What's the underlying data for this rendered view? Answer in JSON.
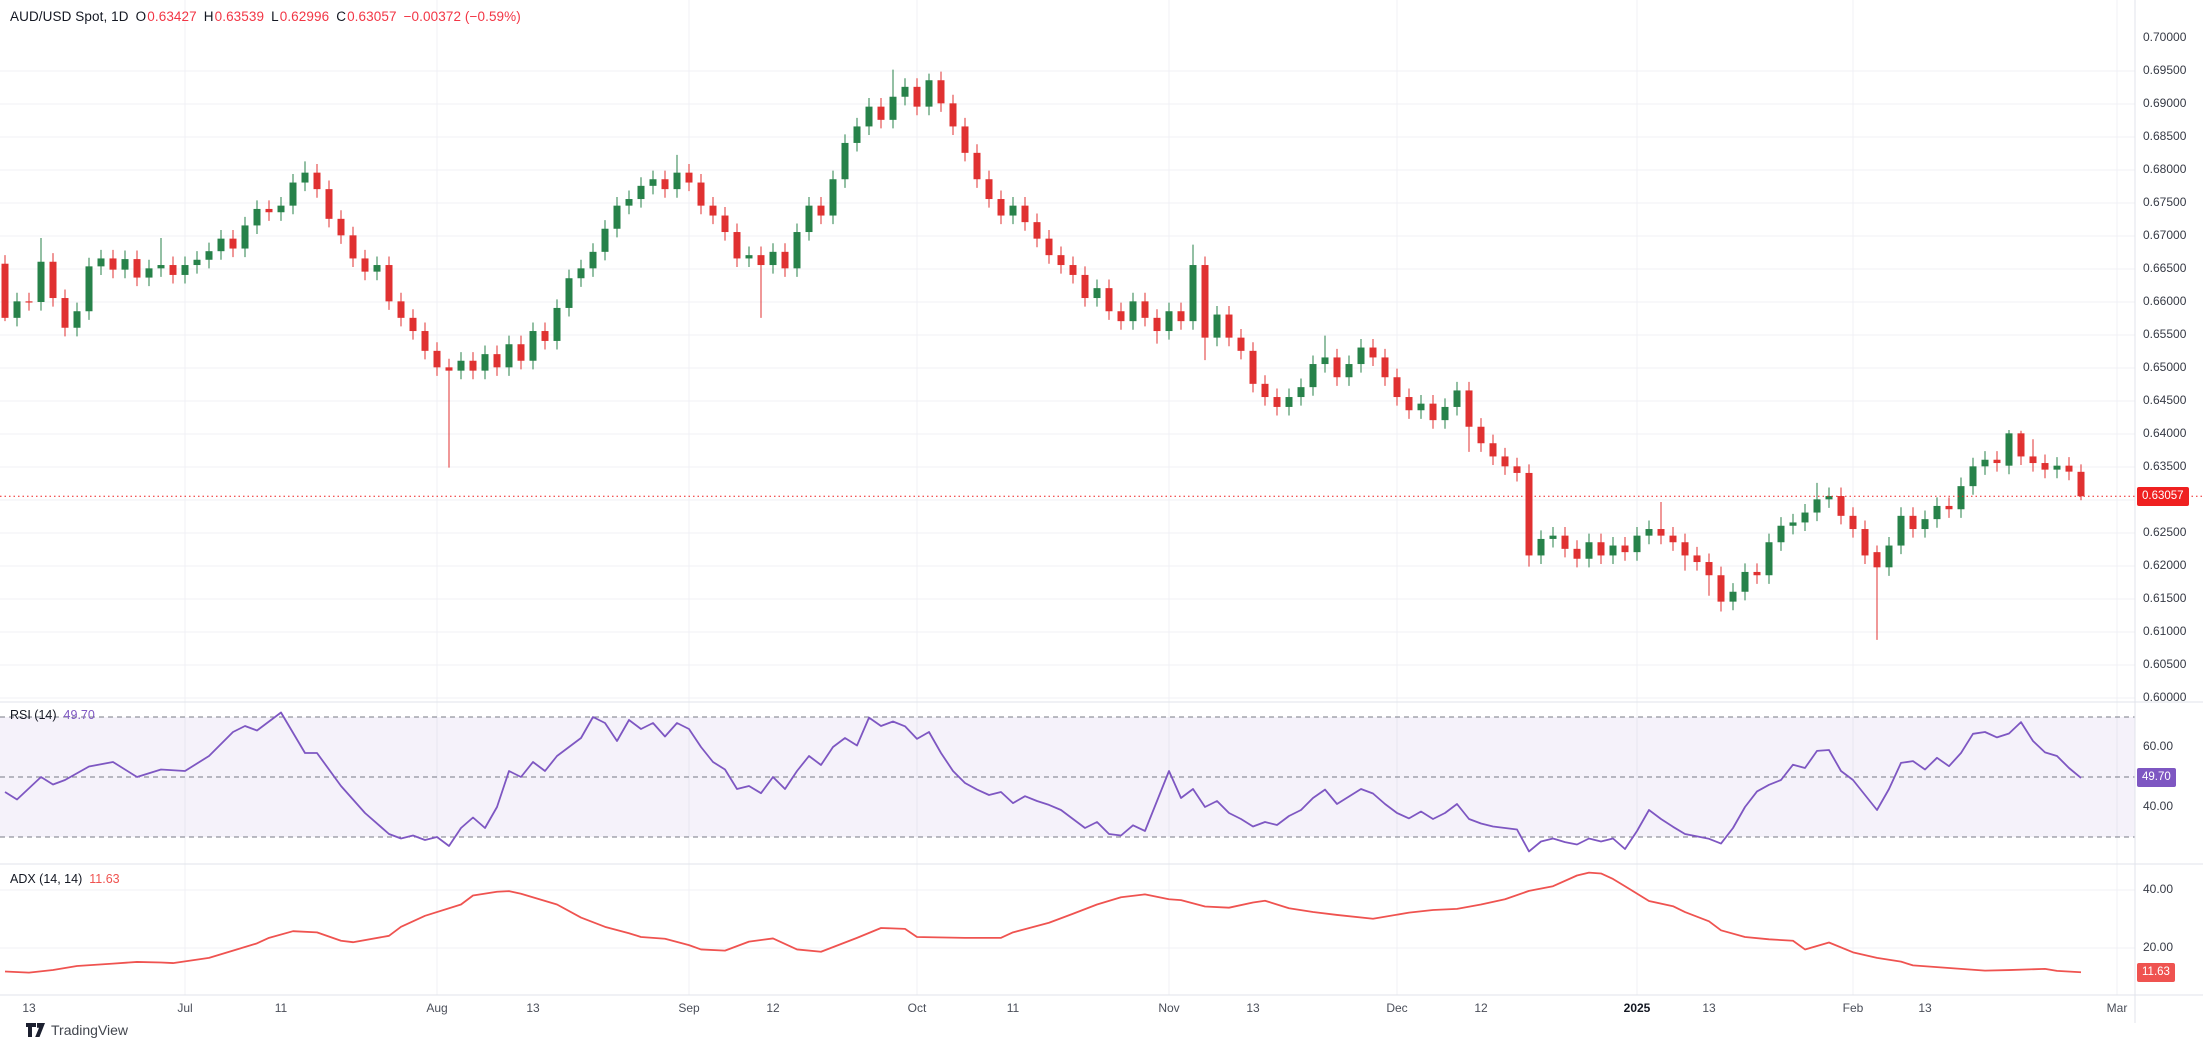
{
  "header": {
    "symbol": "AUD/USD Spot, 1D",
    "fields": [
      {
        "k": "O",
        "v": "0.63427"
      },
      {
        "k": "H",
        "v": "0.63539"
      },
      {
        "k": "L",
        "v": "0.62996"
      },
      {
        "k": "C",
        "v": "0.63057"
      }
    ],
    "change": "−0.00372 (−0.59%)"
  },
  "colors": {
    "up": "#27824a",
    "down": "#e03131",
    "last_price_line": "#ef2020",
    "price_badge_bg": "#ef2020",
    "rsi_line": "#7e57c2",
    "rsi_band_fill": "#7e57c2",
    "rsi_badge_bg": "#7e57c2",
    "adx_line": "#ef5350",
    "adx_badge_bg": "#ef5350",
    "grid": "#f0f1f5",
    "separator": "#e0e3eb",
    "dashed_level": "#787b86",
    "axis_text": "#363a45"
  },
  "price_axis": {
    "ticks": [
      {
        "label": "0.70000",
        "price": 0.7
      },
      {
        "label": "0.69500",
        "price": 0.695
      },
      {
        "label": "0.69000",
        "price": 0.69
      },
      {
        "label": "0.68500",
        "price": 0.685
      },
      {
        "label": "0.68000",
        "price": 0.68
      },
      {
        "label": "0.67500",
        "price": 0.675
      },
      {
        "label": "0.67000",
        "price": 0.67
      },
      {
        "label": "0.66500",
        "price": 0.665
      },
      {
        "label": "0.66000",
        "price": 0.66
      },
      {
        "label": "0.65500",
        "price": 0.655
      },
      {
        "label": "0.65000",
        "price": 0.65
      },
      {
        "label": "0.64500",
        "price": 0.645
      },
      {
        "label": "0.64000",
        "price": 0.64
      },
      {
        "label": "0.63500",
        "price": 0.635
      },
      {
        "label": "0.62500",
        "price": 0.625
      },
      {
        "label": "0.62000",
        "price": 0.62
      },
      {
        "label": "0.61500",
        "price": 0.615
      },
      {
        "label": "0.61000",
        "price": 0.61
      },
      {
        "label": "0.60500",
        "price": 0.605
      },
      {
        "label": "0.60000",
        "price": 0.6
      }
    ],
    "last_price_label": "0.63057",
    "last_price": 0.63057
  },
  "rsi_panel": {
    "name_label": "RSI (14)",
    "value_label": "49.70",
    "value": 49.7,
    "axis_ticks": [
      {
        "label": "60.00",
        "value": 60
      },
      {
        "label": "40.00",
        "value": 40
      }
    ],
    "levels": {
      "upper": 70,
      "middle": 50,
      "lower": 30
    }
  },
  "adx_panel": {
    "name_label": "ADX (14, 14)",
    "value_label": "11.63",
    "value": 11.63,
    "axis_ticks": [
      {
        "label": "40.00",
        "value": 40
      },
      {
        "label": "20.00",
        "value": 20
      }
    ]
  },
  "time_axis": {
    "ticks": [
      {
        "i": 2,
        "label": "13"
      },
      {
        "i": 15,
        "label": "Jul",
        "grid": true
      },
      {
        "i": 23,
        "label": "11"
      },
      {
        "i": 36,
        "label": "Aug",
        "grid": true
      },
      {
        "i": 44,
        "label": "13"
      },
      {
        "i": 57,
        "label": "Sep",
        "grid": true
      },
      {
        "i": 64,
        "label": "12"
      },
      {
        "i": 76,
        "label": "Oct",
        "grid": true
      },
      {
        "i": 84,
        "label": "11"
      },
      {
        "i": 97,
        "label": "Nov",
        "grid": true
      },
      {
        "i": 104,
        "label": "13"
      },
      {
        "i": 116,
        "label": "Dec",
        "grid": true
      },
      {
        "i": 123,
        "label": "12"
      },
      {
        "i": 136,
        "label": "2025",
        "grid": true,
        "bold": true
      },
      {
        "i": 142,
        "label": "13"
      },
      {
        "i": 154,
        "label": "Feb",
        "grid": true
      },
      {
        "i": 160,
        "label": "13"
      },
      {
        "i": 176,
        "label": "Mar",
        "grid": true
      }
    ]
  },
  "watermark": {
    "logo_text": "TradingView"
  },
  "chart_data": {
    "type": "candlestick",
    "title": "AUD/USD Spot, 1D",
    "symbol": "AUD/USD",
    "timeframe": "1D",
    "x_range": "mid-June 2024 to late February 2025, daily bars",
    "ylim": [
      0.6,
      0.7
    ],
    "grid": true,
    "last_bar_ohlc": {
      "o": 0.63427,
      "h": 0.63539,
      "l": 0.62996,
      "c": 0.63057
    },
    "change": -0.00372,
    "change_pct": -0.59,
    "ohlc_derivation": "open = previous close, high = max(o,c)+0.0013, low = min(o,c)-0.0013 unless overridden below; values estimated from gridlines",
    "first_open": 0.6658,
    "default_wick": 0.0013,
    "closes": [
      0.6576,
      0.6601,
      0.66,
      0.6661,
      0.6606,
      0.6561,
      0.6586,
      0.6654,
      0.6666,
      0.6649,
      0.6665,
      0.6637,
      0.6651,
      0.6656,
      0.6641,
      0.6656,
      0.6664,
      0.6677,
      0.6696,
      0.6681,
      0.6716,
      0.6741,
      0.6736,
      0.6746,
      0.6781,
      0.6796,
      0.6771,
      0.6726,
      0.6701,
      0.6666,
      0.6646,
      0.6656,
      0.6601,
      0.6576,
      0.6556,
      0.6526,
      0.6501,
      0.6496,
      0.6511,
      0.6496,
      0.6521,
      0.6501,
      0.6536,
      0.6511,
      0.6556,
      0.6541,
      0.6591,
      0.6636,
      0.6651,
      0.6676,
      0.6711,
      0.6746,
      0.6756,
      0.6776,
      0.6786,
      0.6771,
      0.6796,
      0.6781,
      0.6746,
      0.6731,
      0.6706,
      0.6666,
      0.6671,
      0.6656,
      0.6676,
      0.6651,
      0.6706,
      0.6746,
      0.6731,
      0.6786,
      0.6841,
      0.6866,
      0.6896,
      0.6876,
      0.6911,
      0.6926,
      0.6896,
      0.6936,
      0.6901,
      0.6866,
      0.6826,
      0.6786,
      0.6756,
      0.6731,
      0.6746,
      0.6721,
      0.6696,
      0.6671,
      0.6656,
      0.6641,
      0.6606,
      0.6621,
      0.6586,
      0.6571,
      0.6601,
      0.6576,
      0.6556,
      0.6586,
      0.6571,
      0.6656,
      0.6546,
      0.6581,
      0.6546,
      0.6526,
      0.6476,
      0.6456,
      0.6441,
      0.6456,
      0.6471,
      0.6506,
      0.6516,
      0.6486,
      0.6506,
      0.6531,
      0.6516,
      0.6486,
      0.6456,
      0.6436,
      0.6446,
      0.6421,
      0.6441,
      0.6466,
      0.6411,
      0.6386,
      0.6366,
      0.6351,
      0.6341,
      0.6216,
      0.6241,
      0.6246,
      0.6226,
      0.6211,
      0.6236,
      0.6216,
      0.6231,
      0.6221,
      0.6246,
      0.6256,
      0.6246,
      0.6236,
      0.6216,
      0.6206,
      0.6186,
      0.6146,
      0.6161,
      0.6191,
      0.6186,
      0.6236,
      0.6261,
      0.6266,
      0.6281,
      0.6301,
      0.6306,
      0.6276,
      0.6256,
      0.6216,
      0.6198,
      0.6231,
      0.6276,
      0.6256,
      0.6271,
      0.6291,
      0.6286,
      0.6321,
      0.6351,
      0.6361,
      0.6356,
      0.6401,
      0.6366,
      0.6356,
      0.6346,
      0.6352,
      0.6343,
      0.63057
    ],
    "overrides": {
      "0": {
        "o": 0.6658,
        "h": 0.6671,
        "l": 0.6571
      },
      "3": {
        "h": 0.6697
      },
      "13": {
        "h": 0.6697
      },
      "25": {
        "h": 0.6813
      },
      "37": {
        "l": 0.6349
      },
      "56": {
        "h": 0.6823
      },
      "63": {
        "l": 0.6576
      },
      "74": {
        "h": 0.6952
      },
      "77": {
        "h": 0.6946
      },
      "96": {
        "l": 0.6537
      },
      "99": {
        "h": 0.6687
      },
      "100": {
        "l": 0.6512
      },
      "110": {
        "h": 0.6549
      },
      "122": {
        "l": 0.6373
      },
      "127": {
        "l": 0.6199
      },
      "138": {
        "h": 0.6297
      },
      "140": {
        "l": 0.6193
      },
      "142": {
        "l": 0.6155
      },
      "143": {
        "l": 0.6131
      },
      "151": {
        "h": 0.6326
      },
      "156": {
        "o": 0.6221,
        "h": 0.6231,
        "l": 0.6088
      },
      "167": {
        "o": 0.6352,
        "h": 0.6406
      },
      "168": {
        "h": 0.6405
      },
      "169": {
        "h": 0.6392
      },
      "173": {
        "o": 0.63427,
        "h": 0.63539,
        "l": 0.62996
      }
    },
    "rsi_points": [
      [
        0,
        45
      ],
      [
        1,
        42.5
      ],
      [
        3,
        50
      ],
      [
        4,
        47.5
      ],
      [
        5,
        49
      ],
      [
        7,
        53.5
      ],
      [
        9,
        55
      ],
      [
        11,
        50
      ],
      [
        13,
        52.5
      ],
      [
        15,
        52
      ],
      [
        17,
        57
      ],
      [
        19,
        65
      ],
      [
        20,
        67
      ],
      [
        21,
        65.5
      ],
      [
        23,
        71.5
      ],
      [
        25,
        58
      ],
      [
        26,
        58
      ],
      [
        28,
        47
      ],
      [
        30,
        38
      ],
      [
        32,
        31
      ],
      [
        33,
        29.5
      ],
      [
        34,
        30.5
      ],
      [
        35,
        29
      ],
      [
        36,
        30
      ],
      [
        37,
        27
      ],
      [
        38,
        33
      ],
      [
        39,
        36.5
      ],
      [
        40,
        33
      ],
      [
        41,
        40
      ],
      [
        42,
        52
      ],
      [
        43,
        50
      ],
      [
        44,
        55
      ],
      [
        45,
        52
      ],
      [
        46,
        57
      ],
      [
        48,
        63
      ],
      [
        49,
        70
      ],
      [
        50,
        68
      ],
      [
        51,
        62
      ],
      [
        52,
        69
      ],
      [
        53,
        66
      ],
      [
        54,
        68
      ],
      [
        55,
        63.5
      ],
      [
        56,
        68
      ],
      [
        57,
        66
      ],
      [
        58,
        60
      ],
      [
        59,
        55
      ],
      [
        60,
        52.5
      ],
      [
        61,
        46
      ],
      [
        62,
        47
      ],
      [
        63,
        44.6
      ],
      [
        64,
        50
      ],
      [
        65,
        46
      ],
      [
        66,
        52
      ],
      [
        67,
        57
      ],
      [
        68,
        54
      ],
      [
        69,
        60
      ],
      [
        70,
        63
      ],
      [
        71,
        60.5
      ],
      [
        72,
        69.8
      ],
      [
        73,
        67
      ],
      [
        74,
        68.5
      ],
      [
        75,
        66.9
      ],
      [
        76,
        62.7
      ],
      [
        77,
        65
      ],
      [
        78,
        58
      ],
      [
        79,
        52
      ],
      [
        80,
        48
      ],
      [
        81,
        45.8
      ],
      [
        82,
        44
      ],
      [
        83,
        45
      ],
      [
        84,
        41.3
      ],
      [
        85,
        43.6
      ],
      [
        86,
        42
      ],
      [
        87,
        40.7
      ],
      [
        88,
        39
      ],
      [
        89,
        36
      ],
      [
        90,
        33
      ],
      [
        91,
        35
      ],
      [
        92,
        31
      ],
      [
        93,
        30.5
      ],
      [
        94,
        33.9
      ],
      [
        95,
        32
      ],
      [
        97,
        52
      ],
      [
        98,
        43
      ],
      [
        99,
        46
      ],
      [
        100,
        40
      ],
      [
        101,
        42
      ],
      [
        102,
        38
      ],
      [
        103,
        36
      ],
      [
        104,
        33.5
      ],
      [
        105,
        35
      ],
      [
        106,
        34
      ],
      [
        107,
        37
      ],
      [
        108,
        39
      ],
      [
        109,
        43
      ],
      [
        110,
        45.8
      ],
      [
        111,
        41
      ],
      [
        112,
        43.5
      ],
      [
        113,
        46
      ],
      [
        114,
        44.5
      ],
      [
        115,
        41
      ],
      [
        116,
        38
      ],
      [
        117,
        36.2
      ],
      [
        118,
        38.5
      ],
      [
        119,
        36
      ],
      [
        120,
        38
      ],
      [
        121,
        41
      ],
      [
        122,
        36
      ],
      [
        123,
        34.5
      ],
      [
        124,
        33.5
      ],
      [
        125,
        33
      ],
      [
        126,
        32.5
      ],
      [
        127,
        25.2
      ],
      [
        128,
        28.5
      ],
      [
        129,
        29.5
      ],
      [
        130,
        28.3
      ],
      [
        131,
        27.5
      ],
      [
        132,
        29.5
      ],
      [
        133,
        28.5
      ],
      [
        134,
        29.5
      ],
      [
        135,
        26
      ],
      [
        136,
        32
      ],
      [
        137,
        39
      ],
      [
        138,
        36
      ],
      [
        139,
        33.4
      ],
      [
        140,
        31
      ],
      [
        141,
        30.2
      ],
      [
        142,
        29.4
      ],
      [
        143,
        27.8
      ],
      [
        144,
        33
      ],
      [
        145,
        40
      ],
      [
        146,
        45.2
      ],
      [
        147,
        47.4
      ],
      [
        148,
        49
      ],
      [
        149,
        54.1
      ],
      [
        150,
        53
      ],
      [
        151,
        58.7
      ],
      [
        152,
        59
      ],
      [
        153,
        52
      ],
      [
        154,
        49
      ],
      [
        155,
        44
      ],
      [
        156,
        39
      ],
      [
        157,
        46
      ],
      [
        158,
        54.7
      ],
      [
        159,
        55.3
      ],
      [
        160,
        52.5
      ],
      [
        161,
        56.4
      ],
      [
        162,
        53.6
      ],
      [
        163,
        58
      ],
      [
        164,
        64.4
      ],
      [
        165,
        65
      ],
      [
        166,
        63.2
      ],
      [
        167,
        64.5
      ],
      [
        168,
        68.3
      ],
      [
        169,
        62
      ],
      [
        170,
        58.2
      ],
      [
        171,
        57
      ],
      [
        172,
        53
      ],
      [
        173,
        49.7
      ]
    ],
    "adx_points": [
      [
        0,
        11.9
      ],
      [
        2,
        11.5
      ],
      [
        4,
        12.4
      ],
      [
        6,
        13.8
      ],
      [
        9,
        14.6
      ],
      [
        11,
        15.2
      ],
      [
        13,
        15
      ],
      [
        14,
        14.8
      ],
      [
        17,
        16.6
      ],
      [
        19,
        19.1
      ],
      [
        21,
        21.6
      ],
      [
        22,
        23.5
      ],
      [
        24,
        25.8
      ],
      [
        26,
        25.4
      ],
      [
        28,
        22.5
      ],
      [
        29,
        22
      ],
      [
        32,
        24.2
      ],
      [
        33,
        27.3
      ],
      [
        35,
        31.1
      ],
      [
        38,
        35
      ],
      [
        39,
        38.1
      ],
      [
        41,
        39.4
      ],
      [
        42,
        39.6
      ],
      [
        43,
        38.7
      ],
      [
        46,
        35
      ],
      [
        48,
        30.5
      ],
      [
        50,
        27.3
      ],
      [
        52,
        25.1
      ],
      [
        53,
        23.8
      ],
      [
        55,
        23.2
      ],
      [
        57,
        21
      ],
      [
        58,
        19.5
      ],
      [
        60,
        19.1
      ],
      [
        62,
        22.2
      ],
      [
        64,
        23.3
      ],
      [
        66,
        19.5
      ],
      [
        68,
        18.7
      ],
      [
        71,
        23.5
      ],
      [
        73,
        26.9
      ],
      [
        75,
        26.6
      ],
      [
        76,
        23.8
      ],
      [
        80,
        23.5
      ],
      [
        83,
        23.5
      ],
      [
        84,
        25.4
      ],
      [
        87,
        28.7
      ],
      [
        89,
        31.8
      ],
      [
        91,
        35
      ],
      [
        93,
        37.5
      ],
      [
        95,
        38.5
      ],
      [
        97,
        36.8
      ],
      [
        98,
        36.5
      ],
      [
        100,
        34.3
      ],
      [
        102,
        33.9
      ],
      [
        104,
        35.7
      ],
      [
        105,
        36.3
      ],
      [
        107,
        33.7
      ],
      [
        109,
        32.4
      ],
      [
        111,
        31.4
      ],
      [
        114,
        30.1
      ],
      [
        117,
        32.2
      ],
      [
        119,
        33.1
      ],
      [
        121,
        33.5
      ],
      [
        123,
        35
      ],
      [
        125,
        36.8
      ],
      [
        127,
        39.7
      ],
      [
        129,
        41.3
      ],
      [
        131,
        45
      ],
      [
        132,
        46
      ],
      [
        133,
        45.7
      ],
      [
        134,
        43.8
      ],
      [
        135,
        41.3
      ],
      [
        137,
        36.2
      ],
      [
        139,
        34.4
      ],
      [
        140,
        32.4
      ],
      [
        142,
        29.2
      ],
      [
        143,
        26.1
      ],
      [
        145,
        23.8
      ],
      [
        147,
        23
      ],
      [
        149,
        22.5
      ],
      [
        150,
        19.5
      ],
      [
        152,
        21.9
      ],
      [
        154,
        18.5
      ],
      [
        156,
        16.6
      ],
      [
        158,
        15.3
      ],
      [
        159,
        14
      ],
      [
        161,
        13.4
      ],
      [
        163,
        12.8
      ],
      [
        165,
        12.2
      ],
      [
        167,
        12.4
      ],
      [
        170,
        12.8
      ],
      [
        171,
        12.1
      ],
      [
        173,
        11.63
      ]
    ]
  }
}
